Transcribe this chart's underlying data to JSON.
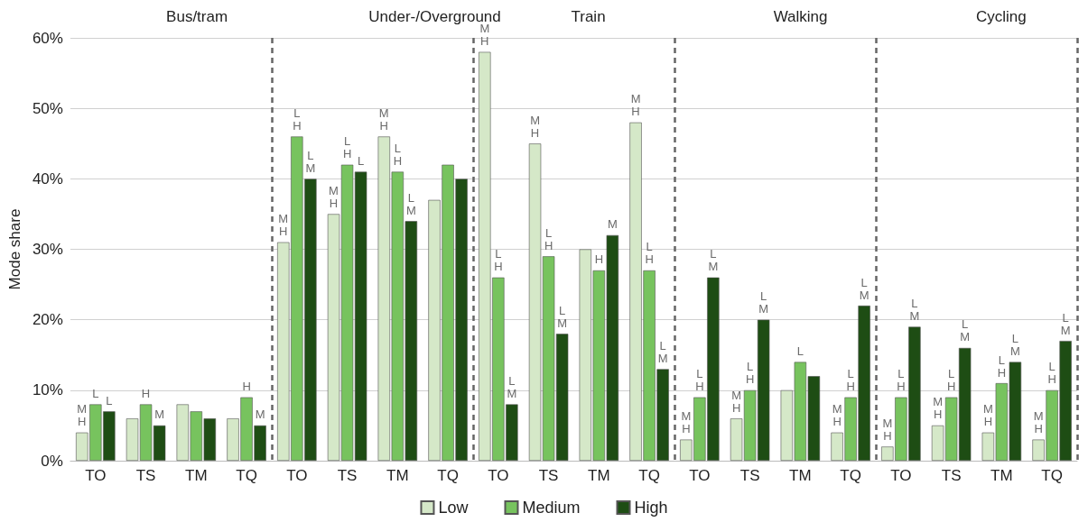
{
  "chart_data": {
    "type": "bar",
    "ylabel": "Mode share",
    "annotations": [
      "Bus/tram",
      "Under-/Overground",
      "Train",
      "Walking",
      "Cycling"
    ],
    "categories": [
      "TO",
      "TS",
      "TM",
      "TQ",
      "TO",
      "TS",
      "TM",
      "TQ",
      "TO",
      "TS",
      "TM",
      "TQ",
      "TO",
      "TS",
      "TM",
      "TQ",
      "TO",
      "TS",
      "TM",
      "TQ"
    ],
    "series": [
      {
        "name": "Low",
        "color": "#d5e8c8",
        "values": [
          4,
          6,
          8,
          6,
          31,
          35,
          46,
          37,
          58,
          45,
          30,
          48,
          3,
          6,
          10,
          4,
          2,
          5,
          4,
          3
        ],
        "value_labels": [
          "M\nH",
          null,
          null,
          null,
          "M\nH",
          "M\nH",
          "M\nH",
          null,
          "M\nH",
          "M\nH",
          null,
          "M\nH",
          "M\nH",
          "M\nH",
          null,
          "M\nH",
          "M\nH",
          "M\nH",
          "M\nH",
          "M\nH"
        ]
      },
      {
        "name": "Medium",
        "color": "#77c35e",
        "values": [
          8,
          8,
          7,
          9,
          46,
          42,
          41,
          42,
          26,
          29,
          27,
          27,
          9,
          10,
          14,
          9,
          9,
          9,
          11,
          10
        ],
        "value_labels": [
          "L",
          "H",
          null,
          "H",
          "L\nH",
          "L\nH",
          "L\nH",
          null,
          "L\nH",
          "L\nH",
          "H",
          "L\nH",
          "L\nH",
          "L\nH",
          "L",
          "L\nH",
          "L\nH",
          "L\nH",
          "L\nH",
          "L\nH"
        ]
      },
      {
        "name": "High",
        "color": "#1e4d14",
        "values": [
          7,
          5,
          6,
          5,
          40,
          41,
          34,
          40,
          8,
          18,
          32,
          13,
          26,
          20,
          12,
          22,
          19,
          16,
          14,
          17
        ],
        "value_labels": [
          "L",
          "M",
          null,
          "M",
          "L\nM",
          "L",
          "L\nM",
          null,
          "L\nM",
          "L\nM",
          "M",
          "L\nM",
          "L\nM",
          "L\nM",
          null,
          "L\nM",
          "L\nM",
          "L\nM",
          "L\nM",
          "L\nM"
        ]
      }
    ],
    "ylim": [
      0,
      60
    ],
    "yticks": [
      {
        "value": 0,
        "label": "0%"
      },
      {
        "value": 10,
        "label": "10%"
      },
      {
        "value": 20,
        "label": "20%"
      },
      {
        "value": 30,
        "label": "30%"
      },
      {
        "value": 40,
        "label": "40%"
      },
      {
        "value": 50,
        "label": "50%"
      },
      {
        "value": 60,
        "label": "60%"
      }
    ],
    "grid": "y",
    "legend": "bottom"
  }
}
